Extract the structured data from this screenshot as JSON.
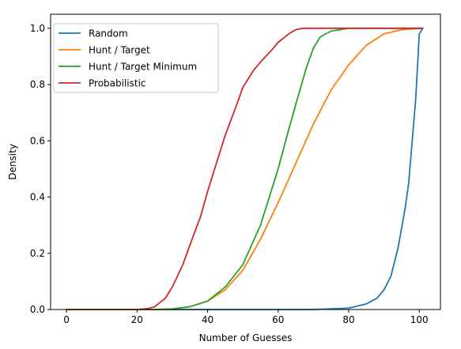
{
  "chart_data": {
    "type": "line",
    "title": "",
    "xlabel": "Number of Guesses",
    "ylabel": "Density",
    "xlim": [
      -4.5,
      106
    ],
    "ylim": [
      0,
      1.05
    ],
    "xticks": [
      0,
      20,
      40,
      60,
      80,
      100
    ],
    "yticks": [
      0.0,
      0.2,
      0.4,
      0.6,
      0.8,
      1.0
    ],
    "grid": false,
    "legend": "top-left",
    "colors": {
      "blue": "#1f77b4",
      "orange": "#ff7f0e",
      "green": "#2ca02c",
      "red": "#d62728"
    },
    "series": [
      {
        "name": "Random",
        "color": "#1f77b4",
        "points": [
          [
            0,
            0
          ],
          [
            70,
            0
          ],
          [
            80,
            0.005
          ],
          [
            85,
            0.02
          ],
          [
            88,
            0.04
          ],
          [
            90,
            0.07
          ],
          [
            92,
            0.12
          ],
          [
            94,
            0.22
          ],
          [
            96,
            0.36
          ],
          [
            97,
            0.45
          ],
          [
            98,
            0.6
          ],
          [
            99,
            0.75
          ],
          [
            100,
            0.98
          ],
          [
            101,
            1.0
          ]
        ]
      },
      {
        "name": "Hunt / Target",
        "color": "#ff7f0e",
        "points": [
          [
            0,
            0
          ],
          [
            25,
            0
          ],
          [
            30,
            0.002
          ],
          [
            35,
            0.01
          ],
          [
            40,
            0.03
          ],
          [
            45,
            0.07
          ],
          [
            50,
            0.14
          ],
          [
            55,
            0.25
          ],
          [
            60,
            0.38
          ],
          [
            65,
            0.52
          ],
          [
            70,
            0.66
          ],
          [
            75,
            0.78
          ],
          [
            80,
            0.87
          ],
          [
            85,
            0.94
          ],
          [
            90,
            0.98
          ],
          [
            95,
            0.995
          ],
          [
            101,
            1.0
          ]
        ]
      },
      {
        "name": "Hunt / Target Minimum",
        "color": "#2ca02c",
        "points": [
          [
            0,
            0
          ],
          [
            25,
            0
          ],
          [
            30,
            0.002
          ],
          [
            35,
            0.01
          ],
          [
            40,
            0.03
          ],
          [
            45,
            0.08
          ],
          [
            50,
            0.16
          ],
          [
            55,
            0.3
          ],
          [
            60,
            0.5
          ],
          [
            63,
            0.64
          ],
          [
            65,
            0.73
          ],
          [
            68,
            0.86
          ],
          [
            70,
            0.93
          ],
          [
            72,
            0.97
          ],
          [
            75,
            0.99
          ],
          [
            80,
            1.0
          ],
          [
            101,
            1.0
          ]
        ]
      },
      {
        "name": "Probabilistic",
        "color": "#d62728",
        "points": [
          [
            0,
            0
          ],
          [
            20,
            0
          ],
          [
            23,
            0.003
          ],
          [
            25,
            0.01
          ],
          [
            28,
            0.04
          ],
          [
            30,
            0.08
          ],
          [
            33,
            0.16
          ],
          [
            35,
            0.23
          ],
          [
            38,
            0.33
          ],
          [
            40,
            0.42
          ],
          [
            43,
            0.54
          ],
          [
            45,
            0.62
          ],
          [
            48,
            0.72
          ],
          [
            50,
            0.79
          ],
          [
            53,
            0.85
          ],
          [
            55,
            0.88
          ],
          [
            58,
            0.92
          ],
          [
            60,
            0.95
          ],
          [
            63,
            0.98
          ],
          [
            65,
            0.995
          ],
          [
            67,
            1.0
          ],
          [
            101,
            1.0
          ]
        ]
      }
    ]
  }
}
